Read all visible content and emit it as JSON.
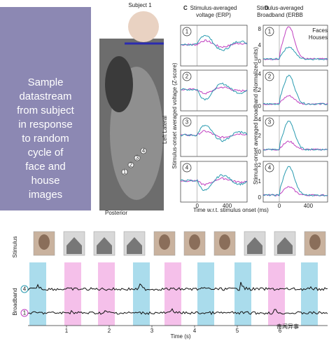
{
  "caption": {
    "lines": [
      "Sample",
      "datastream",
      "from subject",
      "in response",
      "to random",
      "cycle of",
      "face and",
      "house",
      "images"
    ]
  },
  "brain": {
    "subject": "Subject 1",
    "lateral": "Left Lateral",
    "posterior": "Posterior",
    "electrodes": [
      "1",
      "2",
      "3",
      "4"
    ]
  },
  "panel_c": {
    "letter": "C",
    "title_lines": [
      "Stimulus-averaged",
      "voltage (ERP)"
    ],
    "ylabel": "Stimulus-onset averaged voltage (Z-score)",
    "rows": [
      "1",
      "2",
      "3",
      "4"
    ]
  },
  "panel_d": {
    "letter": "D",
    "title_lines": [
      "Stimulus-averaged",
      "Broadband (ERBB"
    ],
    "ylabel": "Stimulus-onset averaged broadband (Normalized units)",
    "legend": [
      "Faces",
      "Houses"
    ],
    "rows": [
      "1",
      "2",
      "3",
      "4"
    ],
    "yticks": [
      [
        "8",
        "4",
        "0"
      ],
      [
        "4",
        "2",
        "0"
      ],
      [
        "4",
        "2",
        "0"
      ],
      [
        "2",
        "1",
        "0"
      ]
    ]
  },
  "x_axis": {
    "ticks": [
      "0",
      "400"
    ],
    "label": "Time w.r.t. stimulus onset (ms)"
  },
  "bottom": {
    "stimulus_label": "Stimulus",
    "broadband_label": "Broadband",
    "channels": [
      "4",
      "1"
    ],
    "time_ticks": [
      "1",
      "2",
      "3",
      "4",
      "5",
      "6"
    ],
    "time_label": "Time (s)"
  },
  "watermark": "奇闻异事"
}
